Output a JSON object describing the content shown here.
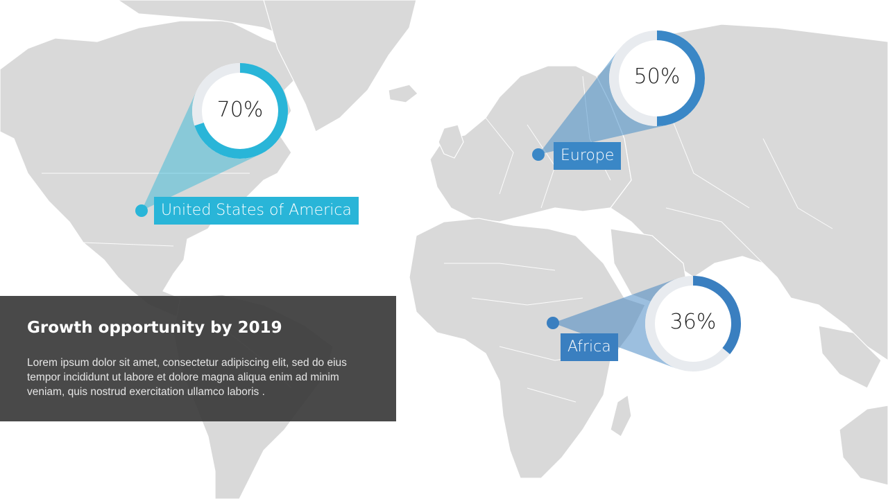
{
  "colors": {
    "land": "#d9d9d9",
    "usa_accent": "#29b5d8",
    "europe_accent": "#3a87c6",
    "africa_accent": "#3a7fc0",
    "ring_track": "#e8ebef",
    "panel": "#3a3a3a"
  },
  "markers": [
    {
      "id": "usa",
      "label": "United States of America",
      "percent_text": "70%",
      "fraction": 0.7
    },
    {
      "id": "europe",
      "label": "Europe",
      "percent_text": "50%",
      "fraction": 0.5
    },
    {
      "id": "africa",
      "label": "Africa",
      "percent_text": "36%",
      "fraction": 0.36
    }
  ],
  "panel": {
    "title": "Growth opportunity by 2019",
    "body": "Lorem ipsum dolor sit amet, consectetur adipiscing elit, sed do eius tempor incididunt ut labore et dolore magna aliqua enim ad minim veniam, quis nostrud exercitation ullamco laboris ."
  }
}
